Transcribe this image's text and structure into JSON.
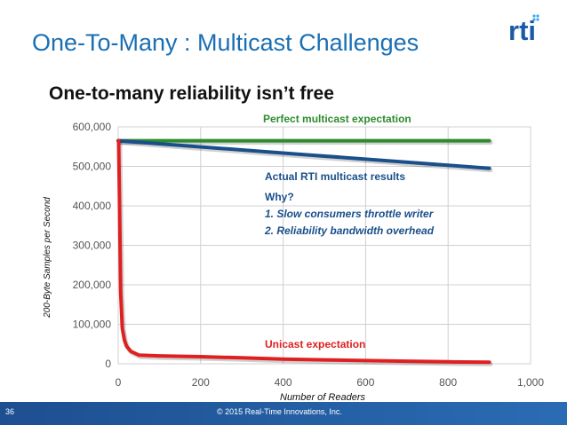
{
  "slide": {
    "title": "One-To-Many : Multicast Challenges",
    "subtitle": "One-to-many reliability isn’t free",
    "logo_text": "rti",
    "page_number": "36",
    "copyright": "© 2015 Real-Time Innovations, Inc.",
    "colors": {
      "title": "#1a6fb3",
      "accent_green": "#2e8b2e",
      "accent_blue": "#1a4f8a",
      "accent_red": "#e02020",
      "footer": "#1d4f91",
      "logo": "#1b5aa6",
      "logo_dots": "#3fa9f5"
    }
  },
  "annotations": {
    "perfect": "Perfect multicast expectation",
    "actual": "Actual RTI multicast results",
    "why": "Why?",
    "reasons": [
      "1.   Slow consumers throttle writer",
      "2.   Reliability bandwidth overhead"
    ],
    "unicast": "Unicast expectation"
  },
  "chart_data": {
    "type": "line",
    "xlabel": "Number of Readers",
    "ylabel": "200-Byte Samples per Second",
    "xlim": [
      0,
      1000
    ],
    "ylim": [
      0,
      600000
    ],
    "x_ticks": [
      0,
      200,
      400,
      600,
      800,
      1000
    ],
    "x_tick_labels": [
      "0",
      "200",
      "400",
      "600",
      "800",
      "1,000"
    ],
    "y_ticks": [
      0,
      100000,
      200000,
      300000,
      400000,
      500000,
      600000
    ],
    "y_tick_labels": [
      "0",
      "100,000",
      "200,000",
      "300,000",
      "400,000",
      "500,000",
      "600,000"
    ],
    "grid": true,
    "series": [
      {
        "color": "#2e8b2e",
        "x": [
          0,
          900
        ],
        "y": [
          565000,
          565000
        ]
      },
      {
        "color": "#1a4f8a",
        "x": [
          0,
          450,
          900
        ],
        "y": [
          565000,
          530000,
          495000
        ]
      },
      {
        "color": "#e02020",
        "x": [
          1,
          3,
          6,
          10,
          15,
          20,
          30,
          50,
          100,
          200,
          300,
          400,
          500,
          600,
          700,
          800,
          900
        ],
        "y": [
          565000,
          420000,
          180000,
          90000,
          60000,
          45000,
          32000,
          22000,
          20000,
          18000,
          15000,
          12000,
          10000,
          8000,
          6500,
          5000,
          4000
        ]
      }
    ]
  }
}
